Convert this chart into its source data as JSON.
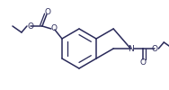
{
  "bg_color": "#ffffff",
  "line_color": "#2a2a5a",
  "lw": 1.1,
  "figsize": [
    1.88,
    1.0
  ],
  "dpi": 100,
  "xlim": [
    0,
    188
  ],
  "ylim": [
    0,
    100
  ]
}
